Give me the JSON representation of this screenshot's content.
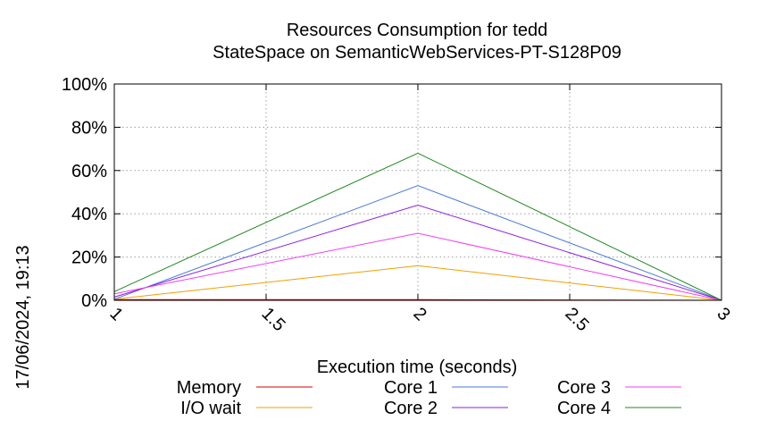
{
  "chart_data": {
    "type": "line",
    "title_line1": "Resources Consumption for tedd",
    "title_line2": "StateSpace on SemanticWebServices-PT-S128P09",
    "xlabel": "Execution time (seconds)",
    "ylabel": "",
    "side_label": "17/06/2024, 19:13",
    "xlim": [
      1,
      3
    ],
    "ylim": [
      0,
      100
    ],
    "x_ticks": [
      {
        "value": 1,
        "label": "1"
      },
      {
        "value": 1.5,
        "label": "1.5"
      },
      {
        "value": 2,
        "label": "2"
      },
      {
        "value": 2.5,
        "label": "2.5"
      },
      {
        "value": 3,
        "label": "3"
      }
    ],
    "y_ticks": [
      {
        "value": 0,
        "label": "0%"
      },
      {
        "value": 20,
        "label": "20%"
      },
      {
        "value": 40,
        "label": "40%"
      },
      {
        "value": 60,
        "label": "60%"
      },
      {
        "value": 80,
        "label": "80%"
      },
      {
        "value": 100,
        "label": "100%"
      }
    ],
    "grid": true,
    "legend_position": "bottom",
    "series": [
      {
        "name": "Memory",
        "color": "#d40000",
        "x": [
          1,
          2,
          3
        ],
        "y": [
          0.3,
          0.3,
          0
        ]
      },
      {
        "name": "I/O wait",
        "color": "#f0a000",
        "x": [
          1,
          2,
          3
        ],
        "y": [
          0.5,
          16,
          0
        ]
      },
      {
        "name": "Core 1",
        "color": "#4a7ad8",
        "x": [
          1,
          2,
          3
        ],
        "y": [
          0.5,
          53,
          0
        ]
      },
      {
        "name": "Core 2",
        "color": "#8a20e8",
        "x": [
          1,
          2,
          3
        ],
        "y": [
          1.5,
          44,
          0
        ]
      },
      {
        "name": "Core 3",
        "color": "#f040f0",
        "x": [
          1,
          2,
          3
        ],
        "y": [
          3,
          31,
          0
        ]
      },
      {
        "name": "Core 4",
        "color": "#208a20",
        "x": [
          1,
          2,
          3
        ],
        "y": [
          4,
          68,
          0
        ]
      }
    ]
  }
}
